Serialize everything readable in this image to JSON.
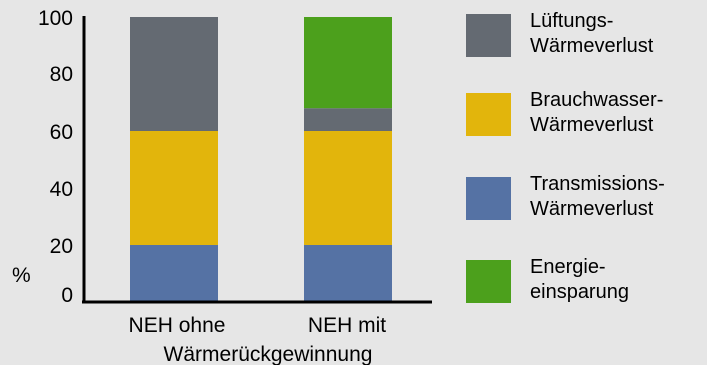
{
  "chart_data": {
    "type": "bar",
    "stacked": true,
    "categories": [
      "NEH ohne",
      "NEH mit"
    ],
    "category_caption": "Wärmerückgewinnung",
    "ylabel": "%",
    "ylim": [
      0,
      100
    ],
    "yticks": [
      0,
      20,
      40,
      60,
      80,
      100
    ],
    "grid": false,
    "legend_position": "right",
    "series": [
      {
        "name": "Transmissions-Wärmeverlust",
        "legend_lines": [
          "Transmissions-",
          "Wärmeverlust"
        ],
        "color": "#5572a4",
        "values": [
          20,
          20
        ]
      },
      {
        "name": "Brauchwasser-Wärmeverlust",
        "legend_lines": [
          "Brauchwasser-",
          "Wärmeverlust"
        ],
        "color": "#e2b50c",
        "values": [
          40,
          40
        ]
      },
      {
        "name": "Lüftungs-Wärmeverlust",
        "legend_lines": [
          "Lüftungs-",
          "Wärmeverlust"
        ],
        "color": "#646a72",
        "values": [
          40,
          8
        ]
      },
      {
        "name": "Energieeinsparung",
        "legend_lines": [
          "Energie-",
          "einsparung"
        ],
        "color": "#4ca01c",
        "values": [
          0,
          32
        ]
      }
    ],
    "legend_order": [
      2,
      1,
      0,
      3
    ]
  }
}
